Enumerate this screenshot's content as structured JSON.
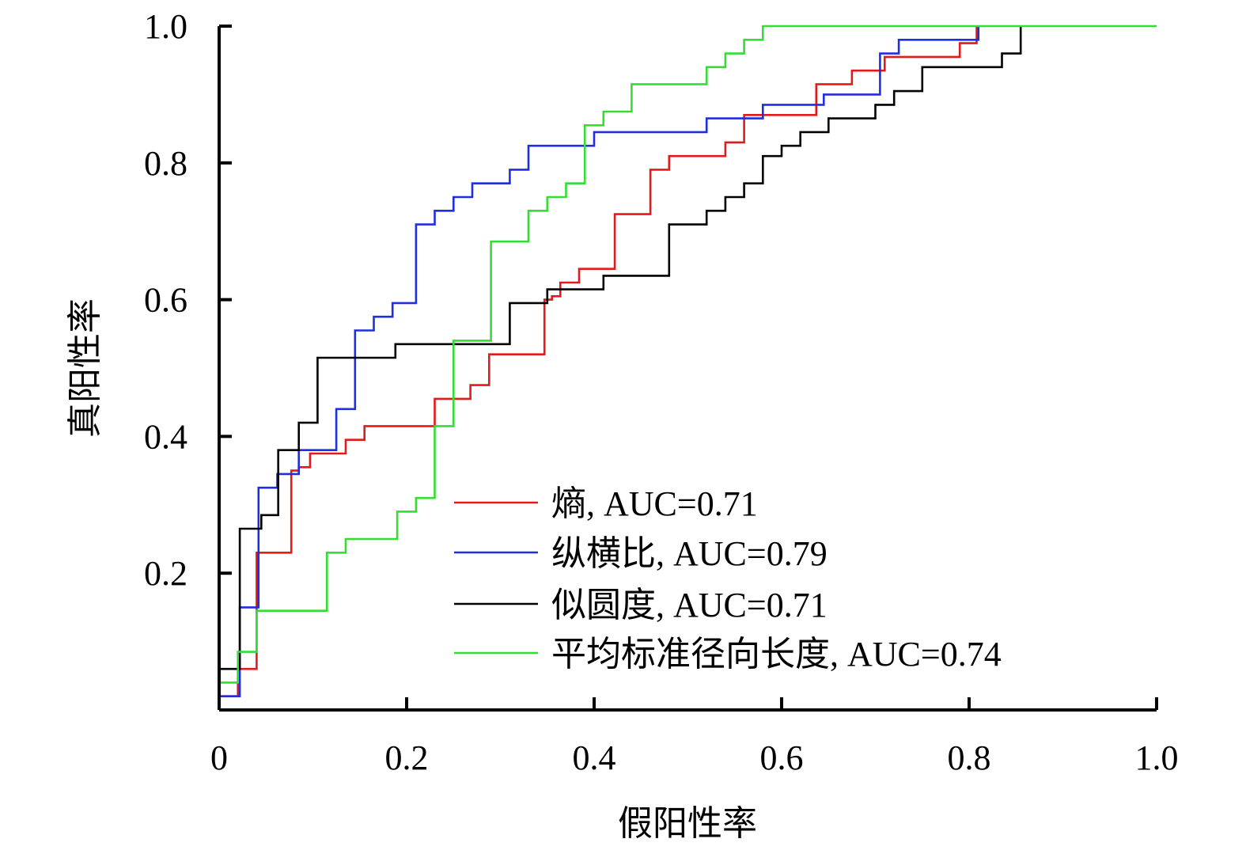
{
  "chart_data": {
    "type": "line",
    "xlabel": "假阳性率",
    "ylabel": "真阳性率",
    "xlim": [
      0,
      1
    ],
    "ylim": [
      0,
      1
    ],
    "x_ticks": [
      {
        "value": 0,
        "label": "0"
      },
      {
        "value": 0.2,
        "label": "0.2"
      },
      {
        "value": 0.4,
        "label": "0.4"
      },
      {
        "value": 0.6,
        "label": "0.6"
      },
      {
        "value": 0.8,
        "label": "0.8"
      },
      {
        "value": 1.0,
        "label": "1.0"
      }
    ],
    "y_ticks": [
      {
        "value": 0.2,
        "label": "0.2"
      },
      {
        "value": 0.4,
        "label": "0.4"
      },
      {
        "value": 0.6,
        "label": "0.6"
      },
      {
        "value": 0.8,
        "label": "0.8"
      },
      {
        "value": 1.0,
        "label": "1.0"
      }
    ],
    "grid": false,
    "legend_position": "bottom-center",
    "series": [
      {
        "name": "熵, AUC=0.71",
        "color": "#e31a1c",
        "points": [
          [
            0,
            0.02
          ],
          [
            0.02,
            0.02
          ],
          [
            0.02,
            0.06
          ],
          [
            0.04,
            0.06
          ],
          [
            0.04,
            0.23
          ],
          [
            0.077,
            0.23
          ],
          [
            0.077,
            0.35
          ],
          [
            0.085,
            0.35
          ],
          [
            0.085,
            0.355
          ],
          [
            0.097,
            0.355
          ],
          [
            0.097,
            0.375
          ],
          [
            0.135,
            0.375
          ],
          [
            0.135,
            0.395
          ],
          [
            0.155,
            0.395
          ],
          [
            0.155,
            0.415
          ],
          [
            0.23,
            0.415
          ],
          [
            0.23,
            0.455
          ],
          [
            0.268,
            0.455
          ],
          [
            0.268,
            0.475
          ],
          [
            0.288,
            0.475
          ],
          [
            0.288,
            0.52
          ],
          [
            0.347,
            0.52
          ],
          [
            0.347,
            0.6
          ],
          [
            0.355,
            0.6
          ],
          [
            0.355,
            0.605
          ],
          [
            0.364,
            0.605
          ],
          [
            0.364,
            0.625
          ],
          [
            0.384,
            0.625
          ],
          [
            0.384,
            0.645
          ],
          [
            0.422,
            0.645
          ],
          [
            0.422,
            0.725
          ],
          [
            0.46,
            0.725
          ],
          [
            0.46,
            0.79
          ],
          [
            0.48,
            0.79
          ],
          [
            0.48,
            0.81
          ],
          [
            0.54,
            0.81
          ],
          [
            0.54,
            0.83
          ],
          [
            0.56,
            0.83
          ],
          [
            0.56,
            0.87
          ],
          [
            0.637,
            0.87
          ],
          [
            0.637,
            0.915
          ],
          [
            0.675,
            0.915
          ],
          [
            0.675,
            0.935
          ],
          [
            0.71,
            0.935
          ],
          [
            0.71,
            0.955
          ],
          [
            0.79,
            0.955
          ],
          [
            0.79,
            0.975
          ],
          [
            0.808,
            0.975
          ],
          [
            0.808,
            1.0
          ]
        ]
      },
      {
        "name": "纵横比, AUC=0.79",
        "color": "#1f2fe0",
        "points": [
          [
            0,
            0.02
          ],
          [
            0.022,
            0.02
          ],
          [
            0.022,
            0.15
          ],
          [
            0.042,
            0.15
          ],
          [
            0.042,
            0.325
          ],
          [
            0.062,
            0.325
          ],
          [
            0.062,
            0.345
          ],
          [
            0.085,
            0.345
          ],
          [
            0.085,
            0.38
          ],
          [
            0.125,
            0.38
          ],
          [
            0.125,
            0.44
          ],
          [
            0.145,
            0.44
          ],
          [
            0.145,
            0.555
          ],
          [
            0.165,
            0.555
          ],
          [
            0.165,
            0.575
          ],
          [
            0.185,
            0.575
          ],
          [
            0.185,
            0.595
          ],
          [
            0.21,
            0.595
          ],
          [
            0.21,
            0.71
          ],
          [
            0.23,
            0.71
          ],
          [
            0.23,
            0.73
          ],
          [
            0.25,
            0.73
          ],
          [
            0.25,
            0.75
          ],
          [
            0.27,
            0.75
          ],
          [
            0.27,
            0.77
          ],
          [
            0.31,
            0.77
          ],
          [
            0.31,
            0.79
          ],
          [
            0.33,
            0.79
          ],
          [
            0.33,
            0.825
          ],
          [
            0.4,
            0.825
          ],
          [
            0.4,
            0.845
          ],
          [
            0.52,
            0.845
          ],
          [
            0.52,
            0.865
          ],
          [
            0.58,
            0.865
          ],
          [
            0.58,
            0.885
          ],
          [
            0.645,
            0.885
          ],
          [
            0.645,
            0.9
          ],
          [
            0.705,
            0.9
          ],
          [
            0.705,
            0.96
          ],
          [
            0.725,
            0.96
          ],
          [
            0.725,
            0.98
          ],
          [
            0.81,
            0.98
          ],
          [
            0.81,
            1.0
          ]
        ]
      },
      {
        "name": "似圆度, AUC=0.71",
        "color": "#000000",
        "points": [
          [
            0,
            0.06
          ],
          [
            0.022,
            0.06
          ],
          [
            0.022,
            0.265
          ],
          [
            0.045,
            0.265
          ],
          [
            0.045,
            0.285
          ],
          [
            0.063,
            0.285
          ],
          [
            0.063,
            0.38
          ],
          [
            0.085,
            0.38
          ],
          [
            0.085,
            0.42
          ],
          [
            0.105,
            0.42
          ],
          [
            0.105,
            0.515
          ],
          [
            0.188,
            0.515
          ],
          [
            0.188,
            0.535
          ],
          [
            0.31,
            0.535
          ],
          [
            0.31,
            0.595
          ],
          [
            0.35,
            0.595
          ],
          [
            0.35,
            0.615
          ],
          [
            0.41,
            0.615
          ],
          [
            0.41,
            0.635
          ],
          [
            0.48,
            0.635
          ],
          [
            0.48,
            0.71
          ],
          [
            0.52,
            0.71
          ],
          [
            0.52,
            0.73
          ],
          [
            0.54,
            0.73
          ],
          [
            0.54,
            0.75
          ],
          [
            0.56,
            0.75
          ],
          [
            0.56,
            0.77
          ],
          [
            0.58,
            0.77
          ],
          [
            0.58,
            0.81
          ],
          [
            0.6,
            0.81
          ],
          [
            0.6,
            0.825
          ],
          [
            0.62,
            0.825
          ],
          [
            0.62,
            0.845
          ],
          [
            0.65,
            0.845
          ],
          [
            0.65,
            0.865
          ],
          [
            0.7,
            0.865
          ],
          [
            0.7,
            0.885
          ],
          [
            0.72,
            0.885
          ],
          [
            0.72,
            0.905
          ],
          [
            0.75,
            0.905
          ],
          [
            0.75,
            0.94
          ],
          [
            0.835,
            0.94
          ],
          [
            0.835,
            0.96
          ],
          [
            0.855,
            0.96
          ],
          [
            0.855,
            1.0
          ]
        ]
      },
      {
        "name": "平均标准径向长度, AUC=0.74",
        "color": "#33dd33",
        "points": [
          [
            0,
            0.02
          ],
          [
            0,
            0.04
          ],
          [
            0.02,
            0.04
          ],
          [
            0.02,
            0.085
          ],
          [
            0.04,
            0.085
          ],
          [
            0.04,
            0.145
          ],
          [
            0.115,
            0.145
          ],
          [
            0.115,
            0.23
          ],
          [
            0.135,
            0.23
          ],
          [
            0.135,
            0.25
          ],
          [
            0.19,
            0.25
          ],
          [
            0.19,
            0.29
          ],
          [
            0.21,
            0.29
          ],
          [
            0.21,
            0.31
          ],
          [
            0.23,
            0.31
          ],
          [
            0.23,
            0.415
          ],
          [
            0.25,
            0.415
          ],
          [
            0.25,
            0.54
          ],
          [
            0.29,
            0.54
          ],
          [
            0.29,
            0.685
          ],
          [
            0.33,
            0.685
          ],
          [
            0.33,
            0.73
          ],
          [
            0.35,
            0.73
          ],
          [
            0.35,
            0.75
          ],
          [
            0.37,
            0.75
          ],
          [
            0.37,
            0.77
          ],
          [
            0.39,
            0.77
          ],
          [
            0.39,
            0.855
          ],
          [
            0.41,
            0.855
          ],
          [
            0.41,
            0.875
          ],
          [
            0.44,
            0.875
          ],
          [
            0.44,
            0.915
          ],
          [
            0.52,
            0.915
          ],
          [
            0.52,
            0.94
          ],
          [
            0.54,
            0.94
          ],
          [
            0.54,
            0.96
          ],
          [
            0.56,
            0.96
          ],
          [
            0.56,
            0.98
          ],
          [
            0.58,
            0.98
          ],
          [
            0.58,
            1.0
          ],
          [
            1.0,
            1.0
          ]
        ]
      }
    ]
  }
}
